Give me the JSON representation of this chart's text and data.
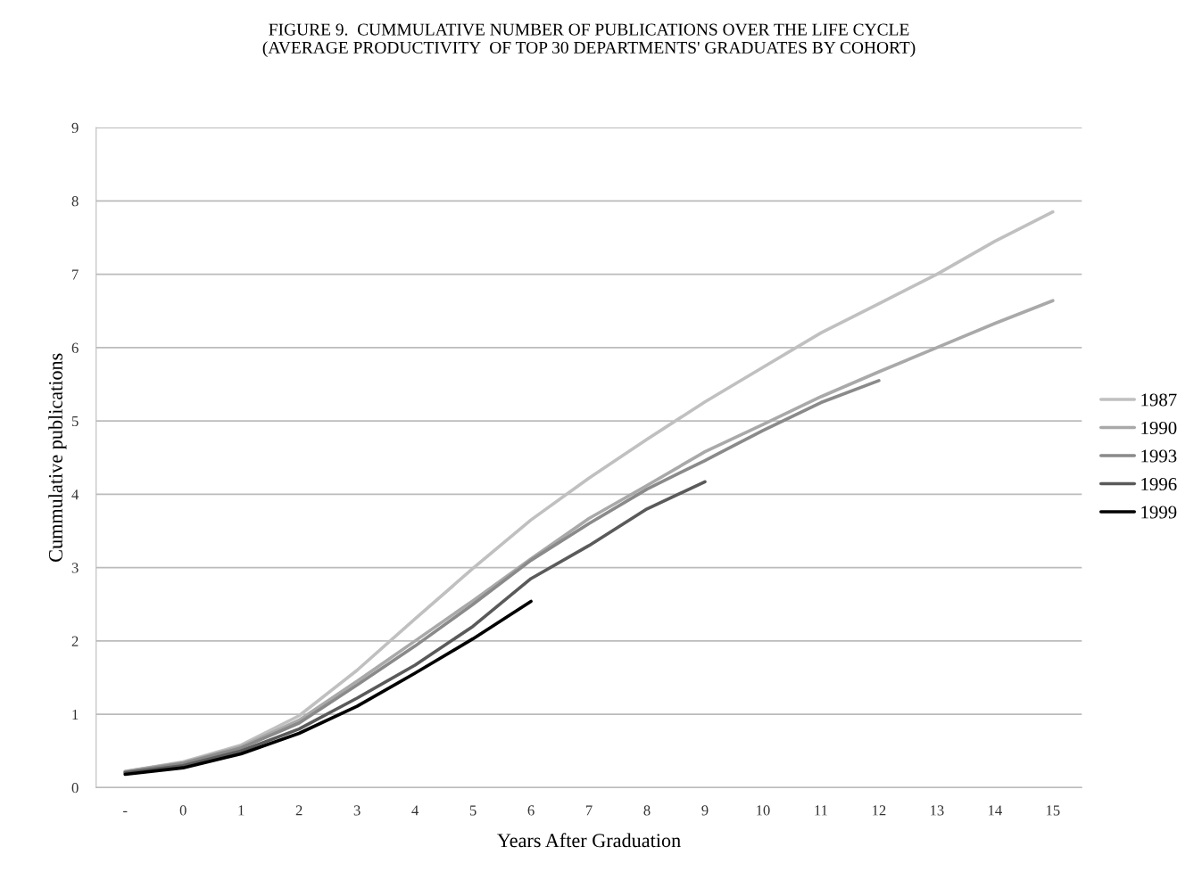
{
  "chart_data": {
    "type": "line",
    "title": "FIGURE 9.  CUMMULATIVE NUMBER OF PUBLICATIONS OVER THE LIFE CYCLE\n(AVERAGE PRODUCTIVITY  OF TOP 30 DEPARTMENTS' GRADUATES BY COHORT)",
    "xlabel": "Years After Graduation",
    "ylabel": "Cummulative publications",
    "categories": [
      "-",
      "0",
      "1",
      "2",
      "3",
      "4",
      "5",
      "6",
      "7",
      "8",
      "9",
      "10",
      "11",
      "12",
      "13",
      "14",
      "15"
    ],
    "series": [
      {
        "name": "1987",
        "color": "#c0c0c0",
        "values": [
          0.22,
          0.35,
          0.58,
          0.98,
          1.6,
          2.3,
          2.99,
          3.65,
          4.22,
          4.75,
          5.26,
          5.73,
          6.2,
          6.6,
          7.0,
          7.45,
          7.85
        ]
      },
      {
        "name": "1990",
        "color": "#a9a9a9",
        "values": [
          0.22,
          0.34,
          0.56,
          0.92,
          1.45,
          2.0,
          2.55,
          3.12,
          3.67,
          4.12,
          4.58,
          4.95,
          5.33,
          5.67,
          6.0,
          6.33,
          6.64
        ]
      },
      {
        "name": "1993",
        "color": "#8a8a8a",
        "values": [
          0.21,
          0.33,
          0.54,
          0.88,
          1.4,
          1.93,
          2.5,
          3.1,
          3.6,
          4.07,
          4.46,
          4.87,
          5.25,
          5.55,
          null,
          null,
          null
        ]
      },
      {
        "name": "1996",
        "color": "#5a5a5a",
        "values": [
          0.2,
          0.3,
          0.5,
          0.8,
          1.22,
          1.67,
          2.2,
          2.85,
          3.3,
          3.8,
          4.17,
          null,
          null,
          null,
          null,
          null,
          null
        ]
      },
      {
        "name": "1999",
        "color": "#000000",
        "values": [
          0.18,
          0.27,
          0.46,
          0.74,
          1.11,
          1.56,
          2.03,
          2.54,
          null,
          null,
          null,
          null,
          null,
          null,
          null,
          null,
          null
        ]
      }
    ],
    "ylim": [
      0,
      9
    ],
    "yticks": [
      0,
      1,
      2,
      3,
      4,
      5,
      6,
      7,
      8,
      9
    ],
    "grid": "y",
    "legend": "right",
    "marker": "none",
    "line_style": "solid"
  }
}
